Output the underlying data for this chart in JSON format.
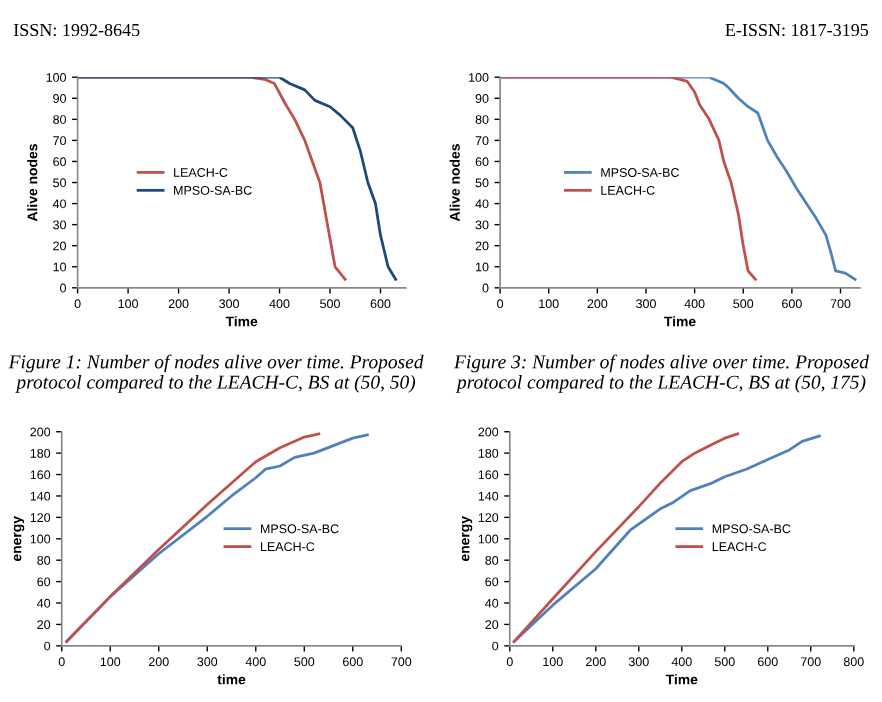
{
  "chart_data": [
    {
      "type": "other",
      "annotations": [
        "ISSN: 1992-8645",
        "E-ISSN: 1817-3195"
      ]
    },
    {
      "type": "line",
      "xlabel": "Time",
      "ylabel": "Alive nodes",
      "xlim": [
        0,
        650
      ],
      "xticks": [
        0,
        100,
        200,
        300,
        400,
        500,
        600
      ],
      "ylim": [
        0,
        100
      ],
      "yticks": [
        0,
        10,
        20,
        30,
        40,
        50,
        60,
        70,
        80,
        90,
        100
      ],
      "legend": "left",
      "annotations": [
        "Figure 1: Number of nodes alive over time. Proposed protocol compared to the LEACH-C, BS at (50, 50)"
      ],
      "series": [
        {
          "name": "LEACH-C",
          "color": "#c0504d",
          "x": [
            0,
            340,
            370,
            390,
            410,
            430,
            450,
            465,
            480,
            495,
            510,
            530
          ],
          "values": [
            100,
            100,
            99,
            97,
            88,
            80,
            70,
            60,
            50,
            30,
            10,
            4
          ]
        },
        {
          "name": "MPSO-SA-BC",
          "color": "#1f497d",
          "x": [
            0,
            400,
            420,
            450,
            470,
            500,
            520,
            545,
            560,
            575,
            590,
            600,
            615,
            630
          ],
          "values": [
            100,
            100,
            97,
            94,
            89,
            86,
            82,
            76,
            65,
            50,
            40,
            25,
            10,
            4
          ]
        }
      ]
    },
    {
      "type": "line",
      "xlabel": "Time",
      "ylabel": "Alive nodes",
      "xlim": [
        0,
        740
      ],
      "xticks": [
        0,
        100,
        200,
        300,
        400,
        500,
        600,
        700
      ],
      "ylim": [
        0,
        100
      ],
      "yticks": [
        0,
        10,
        20,
        30,
        40,
        50,
        60,
        70,
        80,
        90,
        100
      ],
      "legend": "left",
      "annotations": [
        "Figure 3: Number of nodes alive over time. Proposed protocol compared to the LEACH-C, BS at (50, 175)"
      ],
      "series": [
        {
          "name": "MPSO-SA-BC",
          "color": "#4f81bd",
          "x": [
            0,
            430,
            460,
            470,
            490,
            510,
            530,
            550,
            570,
            590,
            610,
            630,
            650,
            670,
            680,
            690,
            710,
            730
          ],
          "values": [
            100,
            100,
            97,
            95,
            90,
            86,
            83,
            70,
            62,
            55,
            47,
            40,
            33,
            25,
            17,
            8,
            7,
            4
          ]
        },
        {
          "name": "LEACH-C",
          "color": "#c0504d",
          "x": [
            0,
            350,
            370,
            385,
            400,
            410,
            430,
            450,
            460,
            475,
            490,
            500,
            510,
            525
          ],
          "values": [
            100,
            100,
            99,
            98,
            93,
            87,
            80,
            70,
            60,
            50,
            35,
            20,
            8,
            4
          ]
        }
      ]
    },
    {
      "type": "line",
      "xlabel": "time",
      "ylabel": "energy",
      "xlim": [
        0,
        700
      ],
      "xticks": [
        0,
        100,
        200,
        300,
        400,
        500,
        600,
        700
      ],
      "ylim": [
        0,
        200
      ],
      "yticks": [
        0,
        20,
        40,
        60,
        80,
        100,
        120,
        140,
        160,
        180,
        200
      ],
      "legend": "right",
      "series": [
        {
          "name": "MPSO-SA-BC",
          "color": "#4f81bd",
          "x": [
            10,
            100,
            200,
            300,
            350,
            400,
            420,
            450,
            480,
            520,
            560,
            600,
            630
          ],
          "values": [
            4,
            46,
            86,
            121,
            140,
            157,
            165,
            168,
            176,
            180,
            187,
            194,
            197
          ]
        },
        {
          "name": "LEACH-C",
          "color": "#c0504d",
          "x": [
            10,
            100,
            200,
            300,
            400,
            450,
            500,
            530
          ],
          "values": [
            4,
            46,
            90,
            132,
            172,
            185,
            195,
            198
          ]
        }
      ]
    },
    {
      "type": "line",
      "xlabel": "Time",
      "ylabel": "energy",
      "xlim": [
        0,
        800
      ],
      "xticks": [
        0,
        100,
        200,
        300,
        400,
        500,
        600,
        700,
        800
      ],
      "ylim": [
        0,
        200
      ],
      "yticks": [
        0,
        20,
        40,
        60,
        80,
        100,
        120,
        140,
        160,
        180,
        200
      ],
      "legend": "right",
      "series": [
        {
          "name": "MPSO-SA-BC",
          "color": "#4f81bd",
          "x": [
            10,
            100,
            200,
            280,
            350,
            380,
            420,
            470,
            500,
            550,
            600,
            650,
            680,
            720
          ],
          "values": [
            4,
            38,
            72,
            108,
            128,
            134,
            145,
            152,
            158,
            165,
            174,
            183,
            191,
            196
          ]
        },
        {
          "name": "LEACH-C",
          "color": "#c0504d",
          "x": [
            10,
            100,
            200,
            300,
            350,
            400,
            430,
            470,
            500,
            530
          ],
          "values": [
            4,
            44,
            88,
            130,
            152,
            172,
            180,
            188,
            194,
            198
          ]
        }
      ]
    }
  ]
}
